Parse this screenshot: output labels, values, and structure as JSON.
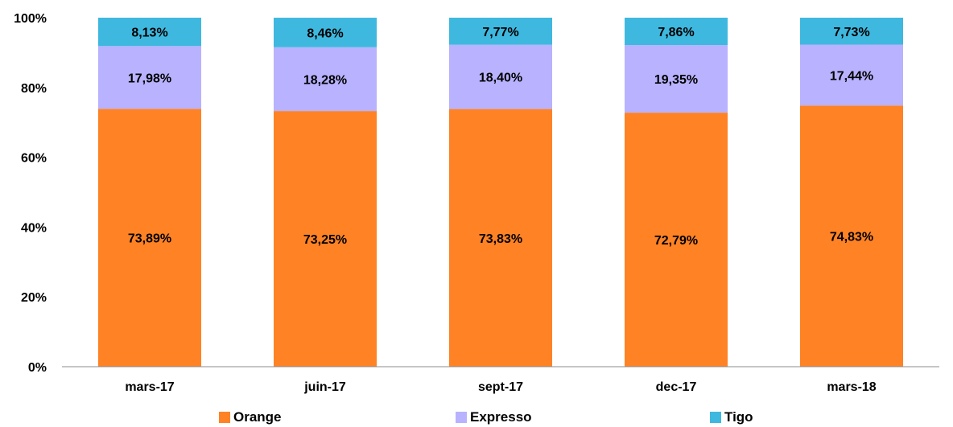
{
  "chart_data": {
    "type": "bar",
    "stacked": true,
    "categories": [
      "mars-17",
      "juin-17",
      "sept-17",
      "dec-17",
      "mars-18"
    ],
    "series": [
      {
        "name": "Orange",
        "color": "#FF8225",
        "values": [
          73.89,
          73.25,
          73.83,
          72.79,
          74.83
        ],
        "labels": [
          "73,89%",
          "73,25%",
          "73,83%",
          "72,79%",
          "74,83%"
        ]
      },
      {
        "name": "Expresso",
        "color": "#B8B2FF",
        "values": [
          17.98,
          18.28,
          18.4,
          19.35,
          17.44
        ],
        "labels": [
          "17,98%",
          "18,28%",
          "18,40%",
          "19,35%",
          "17,44%"
        ]
      },
      {
        "name": "Tigo",
        "color": "#3FB8DF",
        "values": [
          8.13,
          8.46,
          7.77,
          7.86,
          7.73
        ],
        "labels": [
          "8,13%",
          "8,46%",
          "7,77%",
          "7,86%",
          "7,73%"
        ]
      }
    ],
    "ylim": [
      0,
      100
    ],
    "yticks": [
      "0%",
      "20%",
      "40%",
      "60%",
      "80%",
      "100%"
    ],
    "grid": false,
    "legend_position": "bottom"
  }
}
